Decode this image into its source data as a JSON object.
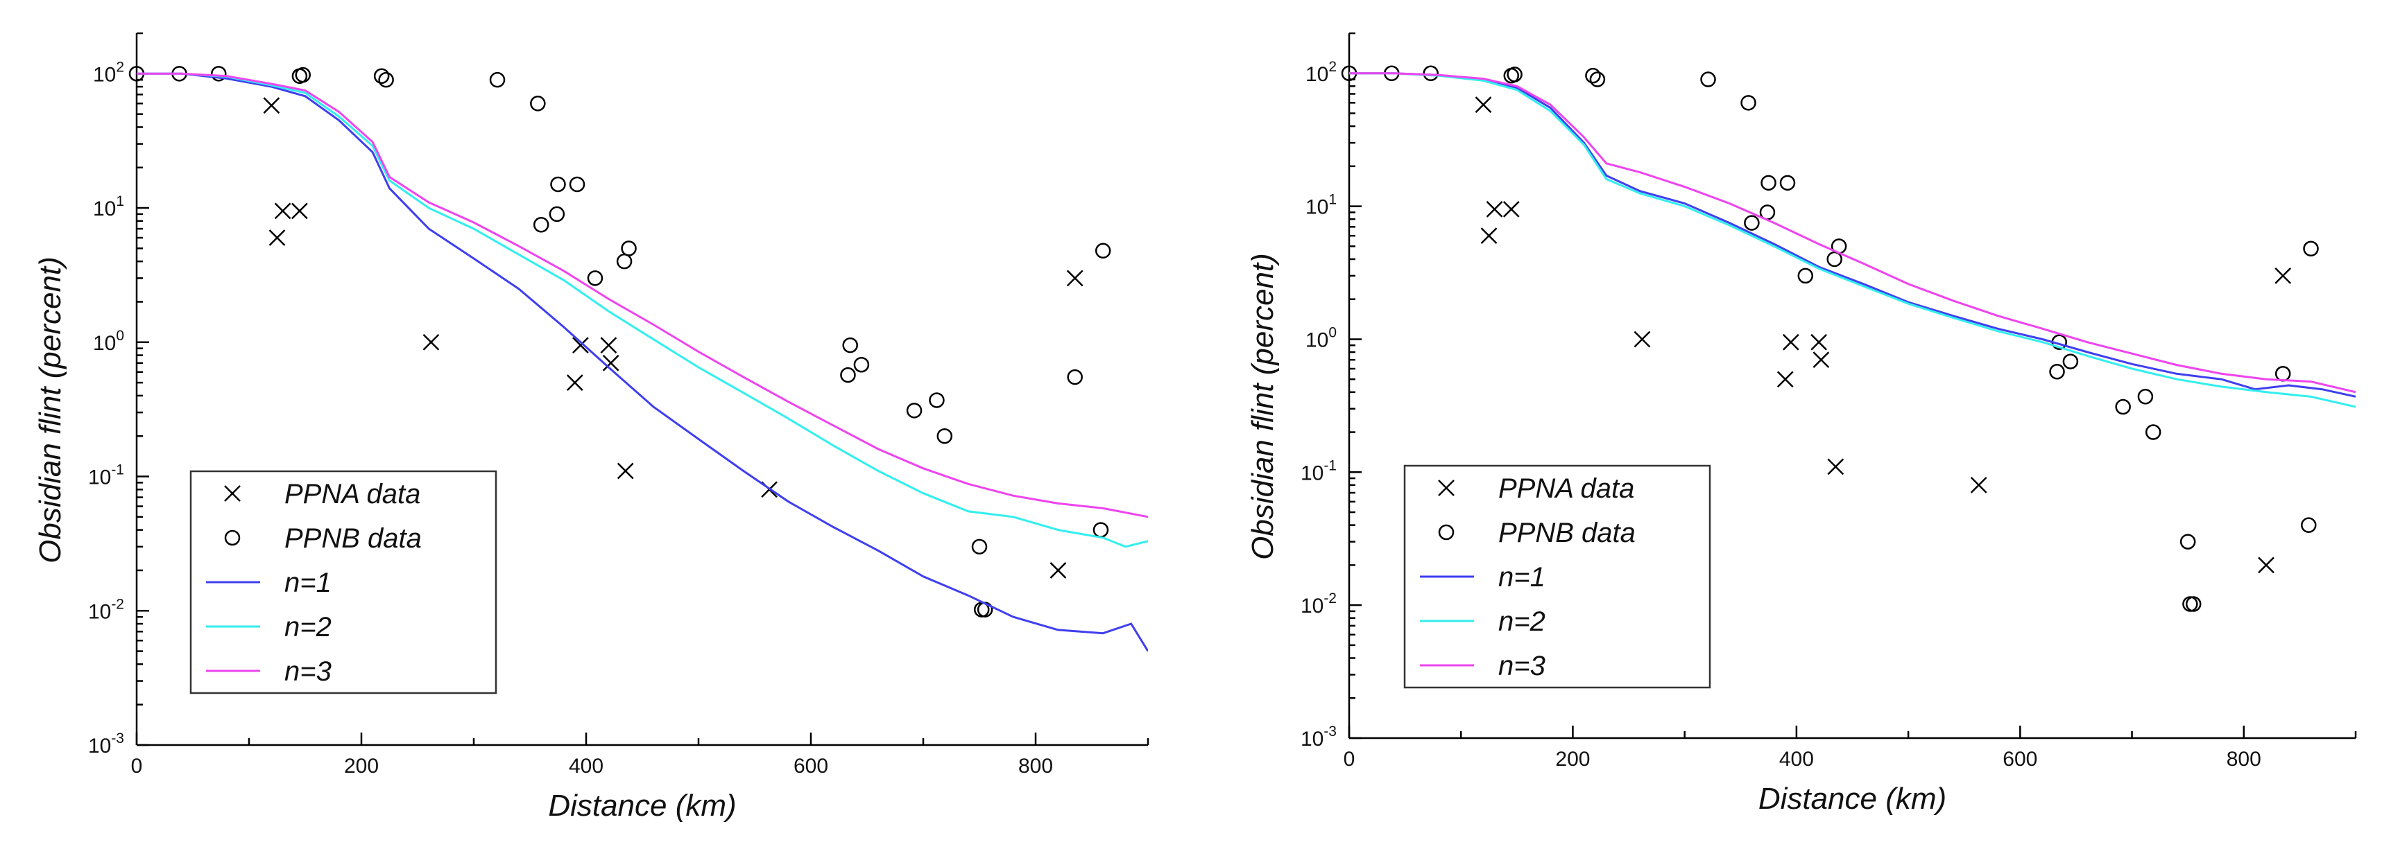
{
  "chart_data": [
    {
      "type": "scatter",
      "xlabel": "Distance (km)",
      "ylabel": "Obsidian flint (percent)",
      "xlim": [
        0,
        900
      ],
      "ylim": [
        0.001,
        200
      ],
      "yscale": "log",
      "xticks": [
        0,
        200,
        400,
        600,
        800
      ],
      "yticks": [
        0.001,
        0.01,
        0.1,
        1,
        10,
        100
      ],
      "ytick_labels": [
        {
          "base": "10",
          "exp": "-3"
        },
        {
          "base": "10",
          "exp": "-2"
        },
        {
          "base": "10",
          "exp": "-1"
        },
        {
          "base": "10",
          "exp": "0"
        },
        {
          "base": "10",
          "exp": "1"
        },
        {
          "base": "10",
          "exp": "2"
        }
      ],
      "legend_position": "bottom-left",
      "series": [
        {
          "name": "PPNA data",
          "kind": "marker-x",
          "color": "#000000",
          "points": [
            [
              120,
              58
            ],
            [
              125,
              6
            ],
            [
              130,
              9.5
            ],
            [
              145,
              9.5
            ],
            [
              262,
              1.0
            ],
            [
              390,
              0.5
            ],
            [
              395,
              0.95
            ],
            [
              420,
              0.95
            ],
            [
              422,
              0.7
            ],
            [
              435,
              0.11
            ],
            [
              563,
              0.08
            ],
            [
              820,
              0.02
            ],
            [
              835,
              3.0
            ]
          ]
        },
        {
          "name": "PPNB data",
          "kind": "marker-o",
          "color": "#000000",
          "points": [
            [
              0,
              100
            ],
            [
              38,
              100
            ],
            [
              73,
              100
            ],
            [
              145,
              96
            ],
            [
              148,
              98
            ],
            [
              218,
              96
            ],
            [
              222,
              90
            ],
            [
              321,
              90
            ],
            [
              357,
              60
            ],
            [
              360,
              7.5
            ],
            [
              374,
              9
            ],
            [
              375,
              15
            ],
            [
              392,
              15
            ],
            [
              408,
              3
            ],
            [
              434,
              4
            ],
            [
              438,
              5
            ],
            [
              633,
              0.57
            ],
            [
              635,
              0.95
            ],
            [
              645,
              0.68
            ],
            [
              692,
              0.31
            ],
            [
              712,
              0.37
            ],
            [
              719,
              0.2
            ],
            [
              750,
              0.03
            ],
            [
              752,
              0.0102
            ],
            [
              755,
              0.0102
            ],
            [
              835,
              0.55
            ],
            [
              858,
              0.04
            ],
            [
              860,
              4.8
            ]
          ]
        },
        {
          "name": "n=1",
          "kind": "line",
          "color": "#3f3ff0",
          "points": [
            [
              0,
              100
            ],
            [
              40,
              100
            ],
            [
              80,
              92
            ],
            [
              120,
              80
            ],
            [
              150,
              68
            ],
            [
              180,
              45
            ],
            [
              210,
              26
            ],
            [
              225,
              14
            ],
            [
              260,
              7
            ],
            [
              300,
              4.2
            ],
            [
              340,
              2.5
            ],
            [
              380,
              1.3
            ],
            [
              420,
              0.65
            ],
            [
              460,
              0.33
            ],
            [
              500,
              0.19
            ],
            [
              540,
              0.11
            ],
            [
              580,
              0.065
            ],
            [
              620,
              0.042
            ],
            [
              660,
              0.028
            ],
            [
              700,
              0.018
            ],
            [
              740,
              0.013
            ],
            [
              780,
              0.009
            ],
            [
              820,
              0.0072
            ],
            [
              860,
              0.0068
            ],
            [
              885,
              0.008
            ],
            [
              900,
              0.005
            ]
          ]
        },
        {
          "name": "n=2",
          "kind": "line",
          "color": "#33eeee",
          "points": [
            [
              0,
              100
            ],
            [
              40,
              100
            ],
            [
              80,
              95
            ],
            [
              120,
              82
            ],
            [
              150,
              72
            ],
            [
              180,
              48
            ],
            [
              210,
              29
            ],
            [
              225,
              16
            ],
            [
              260,
              10
            ],
            [
              300,
              7
            ],
            [
              340,
              4.5
            ],
            [
              380,
              2.9
            ],
            [
              420,
              1.7
            ],
            [
              460,
              1.05
            ],
            [
              500,
              0.65
            ],
            [
              540,
              0.42
            ],
            [
              580,
              0.27
            ],
            [
              620,
              0.17
            ],
            [
              660,
              0.11
            ],
            [
              700,
              0.075
            ],
            [
              740,
              0.055
            ],
            [
              780,
              0.05
            ],
            [
              820,
              0.04
            ],
            [
              860,
              0.035
            ],
            [
              880,
              0.03
            ],
            [
              900,
              0.033
            ]
          ]
        },
        {
          "name": "n=3",
          "kind": "line",
          "color": "#ee44ee",
          "points": [
            [
              0,
              100
            ],
            [
              40,
              100
            ],
            [
              80,
              96
            ],
            [
              120,
              84
            ],
            [
              150,
              75
            ],
            [
              180,
              52
            ],
            [
              210,
              31
            ],
            [
              225,
              17
            ],
            [
              260,
              11
            ],
            [
              300,
              7.8
            ],
            [
              340,
              5.2
            ],
            [
              380,
              3.4
            ],
            [
              420,
              2.1
            ],
            [
              460,
              1.35
            ],
            [
              500,
              0.85
            ],
            [
              540,
              0.55
            ],
            [
              580,
              0.36
            ],
            [
              620,
              0.24
            ],
            [
              660,
              0.16
            ],
            [
              700,
              0.115
            ],
            [
              740,
              0.088
            ],
            [
              780,
              0.072
            ],
            [
              820,
              0.063
            ],
            [
              860,
              0.058
            ],
            [
              900,
              0.05
            ]
          ]
        }
      ]
    },
    {
      "type": "scatter",
      "xlabel": "Distance (km)",
      "ylabel": "Obsidian flint (percent)",
      "xlim": [
        0,
        900
      ],
      "ylim": [
        0.001,
        200
      ],
      "yscale": "log",
      "xticks": [
        0,
        200,
        400,
        600,
        800
      ],
      "yticks": [
        0.001,
        0.01,
        0.1,
        1,
        10,
        100
      ],
      "ytick_labels": [
        {
          "base": "10",
          "exp": "-3"
        },
        {
          "base": "10",
          "exp": "-2"
        },
        {
          "base": "10",
          "exp": "-1"
        },
        {
          "base": "10",
          "exp": "0"
        },
        {
          "base": "10",
          "exp": "1"
        },
        {
          "base": "10",
          "exp": "2"
        }
      ],
      "legend_position": "bottom-left",
      "series": [
        {
          "name": "PPNA data",
          "kind": "marker-x",
          "color": "#000000",
          "points": [
            [
              120,
              58
            ],
            [
              125,
              6
            ],
            [
              130,
              9.5
            ],
            [
              145,
              9.5
            ],
            [
              262,
              1.0
            ],
            [
              390,
              0.5
            ],
            [
              395,
              0.95
            ],
            [
              420,
              0.95
            ],
            [
              422,
              0.7
            ],
            [
              435,
              0.11
            ],
            [
              563,
              0.08
            ],
            [
              820,
              0.02
            ],
            [
              835,
              3.0
            ]
          ]
        },
        {
          "name": "PPNB data",
          "kind": "marker-o",
          "color": "#000000",
          "points": [
            [
              0,
              100
            ],
            [
              38,
              100
            ],
            [
              73,
              100
            ],
            [
              145,
              96
            ],
            [
              148,
              98
            ],
            [
              218,
              96
            ],
            [
              222,
              90
            ],
            [
              321,
              90
            ],
            [
              357,
              60
            ],
            [
              360,
              7.5
            ],
            [
              374,
              9
            ],
            [
              375,
              15
            ],
            [
              392,
              15
            ],
            [
              408,
              3
            ],
            [
              434,
              4
            ],
            [
              438,
              5
            ],
            [
              633,
              0.57
            ],
            [
              635,
              0.95
            ],
            [
              645,
              0.68
            ],
            [
              692,
              0.31
            ],
            [
              712,
              0.37
            ],
            [
              719,
              0.2
            ],
            [
              750,
              0.03
            ],
            [
              752,
              0.0102
            ],
            [
              755,
              0.0102
            ],
            [
              835,
              0.55
            ],
            [
              858,
              0.04
            ],
            [
              860,
              4.8
            ]
          ]
        },
        {
          "name": "n=1",
          "kind": "line",
          "color": "#3f3ff0",
          "points": [
            [
              0,
              100
            ],
            [
              40,
              100
            ],
            [
              80,
              97
            ],
            [
              120,
              90
            ],
            [
              150,
              78
            ],
            [
              180,
              55
            ],
            [
              210,
              30
            ],
            [
              230,
              17
            ],
            [
              260,
              13
            ],
            [
              300,
              10.5
            ],
            [
              340,
              7.5
            ],
            [
              380,
              5.2
            ],
            [
              420,
              3.5
            ],
            [
              460,
              2.6
            ],
            [
              500,
              1.9
            ],
            [
              540,
              1.5
            ],
            [
              580,
              1.2
            ],
            [
              620,
              1.0
            ],
            [
              660,
              0.8
            ],
            [
              700,
              0.65
            ],
            [
              740,
              0.55
            ],
            [
              780,
              0.5
            ],
            [
              810,
              0.42
            ],
            [
              840,
              0.45
            ],
            [
              870,
              0.42
            ],
            [
              900,
              0.37
            ]
          ]
        },
        {
          "name": "n=2",
          "kind": "line",
          "color": "#33eeee",
          "points": [
            [
              0,
              100
            ],
            [
              40,
              100
            ],
            [
              80,
              96
            ],
            [
              120,
              88
            ],
            [
              150,
              75
            ],
            [
              180,
              52
            ],
            [
              210,
              29
            ],
            [
              230,
              16
            ],
            [
              260,
              12.5
            ],
            [
              300,
              10
            ],
            [
              340,
              7.2
            ],
            [
              380,
              5
            ],
            [
              420,
              3.4
            ],
            [
              460,
              2.5
            ],
            [
              500,
              1.85
            ],
            [
              540,
              1.45
            ],
            [
              580,
              1.15
            ],
            [
              620,
              0.95
            ],
            [
              660,
              0.75
            ],
            [
              700,
              0.6
            ],
            [
              740,
              0.5
            ],
            [
              780,
              0.44
            ],
            [
              820,
              0.4
            ],
            [
              860,
              0.37
            ],
            [
              900,
              0.31
            ]
          ]
        },
        {
          "name": "n=3",
          "kind": "line",
          "color": "#ee44ee",
          "points": [
            [
              0,
              100
            ],
            [
              40,
              100
            ],
            [
              80,
              97
            ],
            [
              120,
              91
            ],
            [
              150,
              80
            ],
            [
              180,
              58
            ],
            [
              210,
              33
            ],
            [
              230,
              21
            ],
            [
              260,
              18
            ],
            [
              300,
              14
            ],
            [
              340,
              10.5
            ],
            [
              380,
              7.5
            ],
            [
              420,
              5.2
            ],
            [
              460,
              3.7
            ],
            [
              500,
              2.6
            ],
            [
              540,
              1.95
            ],
            [
              580,
              1.5
            ],
            [
              620,
              1.2
            ],
            [
              660,
              0.95
            ],
            [
              700,
              0.78
            ],
            [
              740,
              0.64
            ],
            [
              780,
              0.55
            ],
            [
              820,
              0.5
            ],
            [
              860,
              0.48
            ],
            [
              900,
              0.4
            ]
          ]
        }
      ]
    }
  ]
}
